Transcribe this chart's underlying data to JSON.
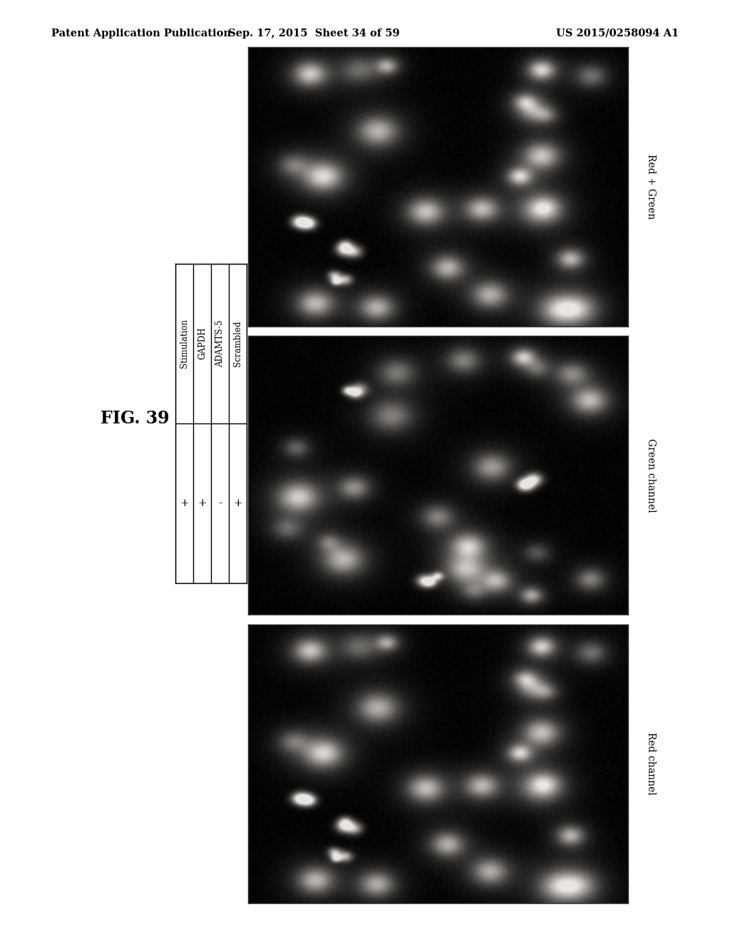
{
  "header_left": "Patent Application Publication",
  "header_center": "Sep. 17, 2015  Sheet 34 of 59",
  "header_right": "US 2015/0258094 A1",
  "fig_label": "FIG. 39",
  "table_headers": [
    "Stimulation",
    "GAPDH",
    "ADAMTS-5",
    "Scrambled"
  ],
  "table_values": [
    "+",
    "+",
    "-",
    "+"
  ],
  "image_labels_right": [
    "Red + Green",
    "Green channel",
    "Red channel"
  ],
  "background_color": "#ffffff",
  "header_fontsize": 10.5,
  "fig_label_fontsize": 17,
  "table_fontsize": 8.5,
  "value_fontsize": 11,
  "label_fontsize": 10
}
